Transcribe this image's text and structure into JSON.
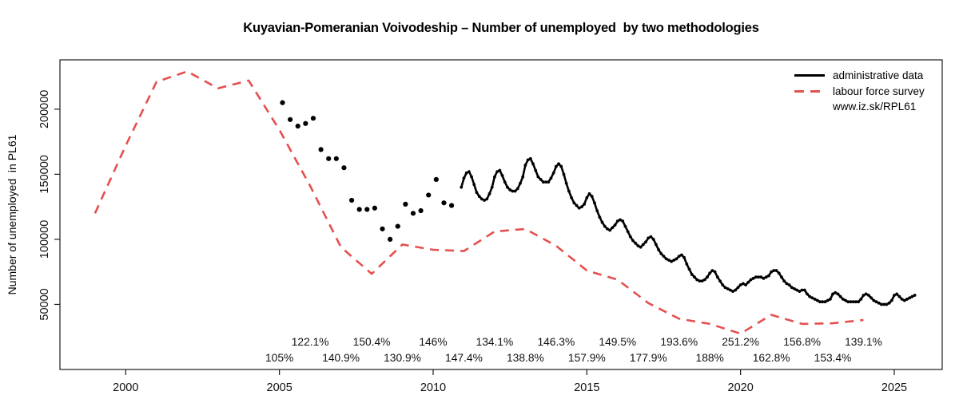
{
  "title": "Kuyavian-Pomeranian Voivodeship – Number of unemployed  by two methodologies",
  "ylabel": "Number of unemployed  in PL61",
  "legend": {
    "items": [
      {
        "label": "administrative data",
        "style": "solid",
        "color": "#000000"
      },
      {
        "label": "labour force survey",
        "style": "dashed",
        "color": "#e4504e"
      },
      {
        "label": "www.iz.sk/RPL61",
        "style": "none",
        "color": null
      }
    ]
  },
  "colors": {
    "administrative": "#000000",
    "labour_force_survey": "#e4504e",
    "axis": "#1a1a1a",
    "background": "#ffffff"
  },
  "chart_data": {
    "type": "line",
    "title": "Kuyavian-Pomeranian Voivodeship – Number of unemployed  by two methodologies",
    "xlabel": "",
    "ylabel": "Number of unemployed  in PL61",
    "xlim": [
      1997.86,
      2026.56
    ],
    "ylim": [
      0,
      237900
    ],
    "x_ticks": [
      2000,
      2005,
      2010,
      2015,
      2020,
      2025
    ],
    "y_ticks": [
      50000,
      100000,
      150000,
      200000
    ],
    "grid": false,
    "legend_position": "top-right",
    "series": [
      {
        "name": "labour force survey",
        "mode": "dashed-line",
        "color": "#e4504e",
        "x": [
          1999,
          2000,
          2001,
          2002,
          2003,
          2004,
          2005,
          2006,
          2007,
          2008,
          2009,
          2010,
          2011,
          2012,
          2013,
          2014,
          2015,
          2016,
          2017,
          2018,
          2019,
          2020,
          2021,
          2022,
          2023,
          2024
        ],
        "y": [
          120000,
          172000,
          221000,
          229000,
          216000,
          222000,
          184000,
          141000,
          94000,
          73500,
          96000,
          92000,
          91000,
          106000,
          108000,
          95000,
          76000,
          69000,
          51000,
          39000,
          35000,
          27500,
          42000,
          35000,
          35500,
          38000
        ]
      },
      {
        "name": "administrative data (quarterly points)",
        "mode": "points",
        "color": "#000000",
        "x": [
          2005.1,
          2005.35,
          2005.6,
          2005.85,
          2006.1,
          2006.35,
          2006.6,
          2006.85,
          2007.1,
          2007.35,
          2007.6,
          2007.85,
          2008.1,
          2008.35,
          2008.6,
          2008.85,
          2009.1,
          2009.35,
          2009.6,
          2009.85,
          2010.1,
          2010.35,
          2010.6
        ],
        "y": [
          205000,
          192000,
          187000,
          189000,
          193000,
          169000,
          162000,
          162000,
          155000,
          130000,
          123000,
          123000,
          124000,
          108000,
          100000,
          110000,
          127000,
          120000,
          122000,
          134000,
          146000,
          128000,
          126000
        ]
      },
      {
        "name": "administrative data (monthly)",
        "mode": "line-points",
        "color": "#000000",
        "x_start": 2010.9167,
        "x_step": 0.083333,
        "y": [
          140000,
          147000,
          151000,
          152000,
          148000,
          142000,
          136000,
          133000,
          131000,
          130000,
          131000,
          135000,
          140000,
          148000,
          152000,
          153000,
          149000,
          144000,
          140000,
          138000,
          137000,
          137000,
          139000,
          143000,
          148000,
          157000,
          161000,
          162000,
          158000,
          153000,
          148000,
          146000,
          144000,
          144000,
          144000,
          147000,
          151000,
          156000,
          158000,
          156000,
          150000,
          143000,
          137000,
          132000,
          128000,
          126000,
          124000,
          125000,
          127000,
          132000,
          135000,
          133000,
          128000,
          122000,
          117000,
          113000,
          110000,
          108000,
          107000,
          109000,
          111000,
          114000,
          115000,
          114000,
          110000,
          106000,
          102000,
          99000,
          97000,
          95000,
          94000,
          96000,
          98000,
          101000,
          102000,
          100000,
          96000,
          92000,
          89000,
          87000,
          85000,
          84000,
          83000,
          84000,
          85000,
          87000,
          88000,
          86000,
          81000,
          77000,
          73000,
          71000,
          69000,
          68000,
          68000,
          69000,
          71000,
          74000,
          76000,
          75000,
          71000,
          68000,
          65000,
          63000,
          62000,
          61000,
          60000,
          61000,
          63000,
          65000,
          66000,
          65000,
          67000,
          69000,
          70000,
          71000,
          71000,
          71000,
          70000,
          71000,
          72000,
          75000,
          76000,
          76000,
          74000,
          71000,
          68000,
          66000,
          65000,
          63000,
          62000,
          61000,
          60000,
          61000,
          61000,
          58000,
          56000,
          55000,
          54000,
          53000,
          52000,
          52000,
          52000,
          53000,
          54000,
          58000,
          59000,
          58000,
          56000,
          54000,
          53000,
          52000,
          52000,
          52000,
          52000,
          52000,
          54000,
          57000,
          58000,
          57000,
          55000,
          53000,
          52000,
          51000,
          50000,
          50000,
          50000,
          51000,
          53000,
          57000,
          58000,
          56000,
          54000,
          53000,
          54000,
          55000,
          56000,
          57000
        ]
      }
    ],
    "ratio_labels": {
      "upper": [
        {
          "year": 2006,
          "text": "122.1%"
        },
        {
          "year": 2008,
          "text": "150.4%"
        },
        {
          "year": 2010,
          "text": "146%"
        },
        {
          "year": 2012,
          "text": "134.1%"
        },
        {
          "year": 2014,
          "text": "146.3%"
        },
        {
          "year": 2016,
          "text": "149.5%"
        },
        {
          "year": 2018,
          "text": "193.6%"
        },
        {
          "year": 2020,
          "text": "251.2%"
        },
        {
          "year": 2022,
          "text": "156.8%"
        },
        {
          "year": 2024,
          "text": "139.1%"
        }
      ],
      "lower": [
        {
          "year": 2005,
          "text": "105%"
        },
        {
          "year": 2007,
          "text": "140.9%"
        },
        {
          "year": 2009,
          "text": "130.9%"
        },
        {
          "year": 2011,
          "text": "147.4%"
        },
        {
          "year": 2013,
          "text": "138.8%"
        },
        {
          "year": 2015,
          "text": "157.9%"
        },
        {
          "year": 2017,
          "text": "177.9%"
        },
        {
          "year": 2019,
          "text": "188%"
        },
        {
          "year": 2021,
          "text": "162.8%"
        },
        {
          "year": 2023,
          "text": "153.4%"
        }
      ]
    }
  }
}
